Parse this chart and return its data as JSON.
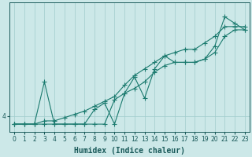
{
  "xlabel": "Humidex (Indice chaleur)",
  "ylabel": "",
  "bg_color": "#cce8e8",
  "line_color": "#1a7a6e",
  "grid_color": "#a0cccc",
  "axis_color": "#1a5a5a",
  "xlim": [
    -0.5,
    23.5
  ],
  "ylim": [
    3.5,
    7.5
  ],
  "xticks": [
    0,
    1,
    2,
    3,
    4,
    5,
    6,
    7,
    8,
    9,
    10,
    11,
    12,
    13,
    14,
    15,
    16,
    17,
    18,
    19,
    20,
    21,
    22,
    23
  ],
  "ytick_labels": [
    "4"
  ],
  "ytick_positions": [
    4
  ],
  "line1_x": [
    0,
    1,
    2,
    3,
    4,
    5,
    6,
    7,
    8,
    9,
    10,
    11,
    12,
    13,
    14,
    15,
    16,
    17,
    18,
    19,
    20,
    21,
    22,
    23
  ],
  "line1_y": [
    3.75,
    3.75,
    3.75,
    3.75,
    3.75,
    3.75,
    3.75,
    3.75,
    3.75,
    3.75,
    4.5,
    4.7,
    4.85,
    5.05,
    5.35,
    5.55,
    5.65,
    5.65,
    5.65,
    5.75,
    5.95,
    6.45,
    6.65,
    6.65
  ],
  "line2_x": [
    0,
    1,
    2,
    3,
    4,
    5,
    6,
    7,
    8,
    9,
    10,
    11,
    12,
    13,
    14,
    15,
    16,
    17,
    18,
    19,
    20,
    21,
    22,
    23
  ],
  "line2_y": [
    3.75,
    3.75,
    3.75,
    3.85,
    3.85,
    3.95,
    4.05,
    4.15,
    4.3,
    4.45,
    4.6,
    4.95,
    5.25,
    5.45,
    5.65,
    5.85,
    5.95,
    6.05,
    6.05,
    6.25,
    6.45,
    6.75,
    6.75,
    6.75
  ],
  "line3_x": [
    0,
    1,
    2,
    3,
    4,
    5,
    6,
    7,
    8,
    9,
    10,
    11,
    12,
    13,
    14,
    15,
    16,
    17,
    18,
    19,
    20,
    21,
    22,
    23
  ],
  "line3_y": [
    3.75,
    3.75,
    3.75,
    5.05,
    3.75,
    3.75,
    3.75,
    3.75,
    4.2,
    4.4,
    3.75,
    4.7,
    5.2,
    4.55,
    5.45,
    5.85,
    5.65,
    5.65,
    5.65,
    5.75,
    6.15,
    7.05,
    6.85,
    6.65
  ],
  "marker_size": 2.5,
  "linewidth": 0.8,
  "tick_fontsize": 5.5,
  "xlabel_fontsize": 7
}
